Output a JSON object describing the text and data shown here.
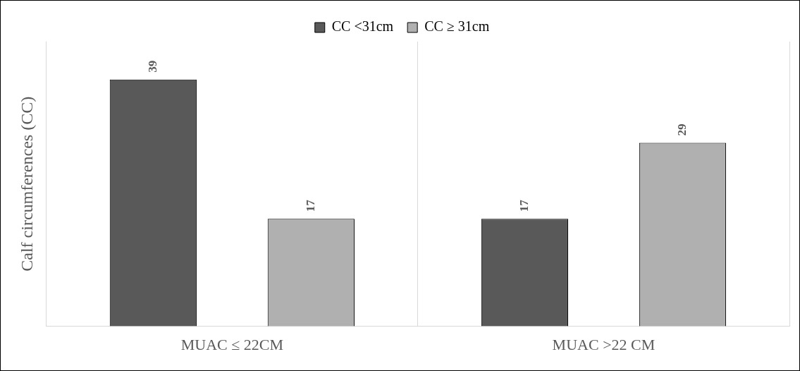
{
  "chart_data": {
    "type": "bar",
    "ylabel": "Calf circumferences (CC)",
    "categories": [
      "MUAC ≤ 22CM",
      "MUAC >22 CM"
    ],
    "series": [
      {
        "name": "CC <31cm",
        "color": "#595959",
        "values": [
          39,
          17
        ]
      },
      {
        "name": "CC ≥ 31cm",
        "color": "#b0b0b0",
        "values": [
          17,
          29
        ]
      }
    ],
    "ylim": [
      0,
      45
    ],
    "tick_labels": "x",
    "grid": "x",
    "legend": "top",
    "data_labels": true
  }
}
